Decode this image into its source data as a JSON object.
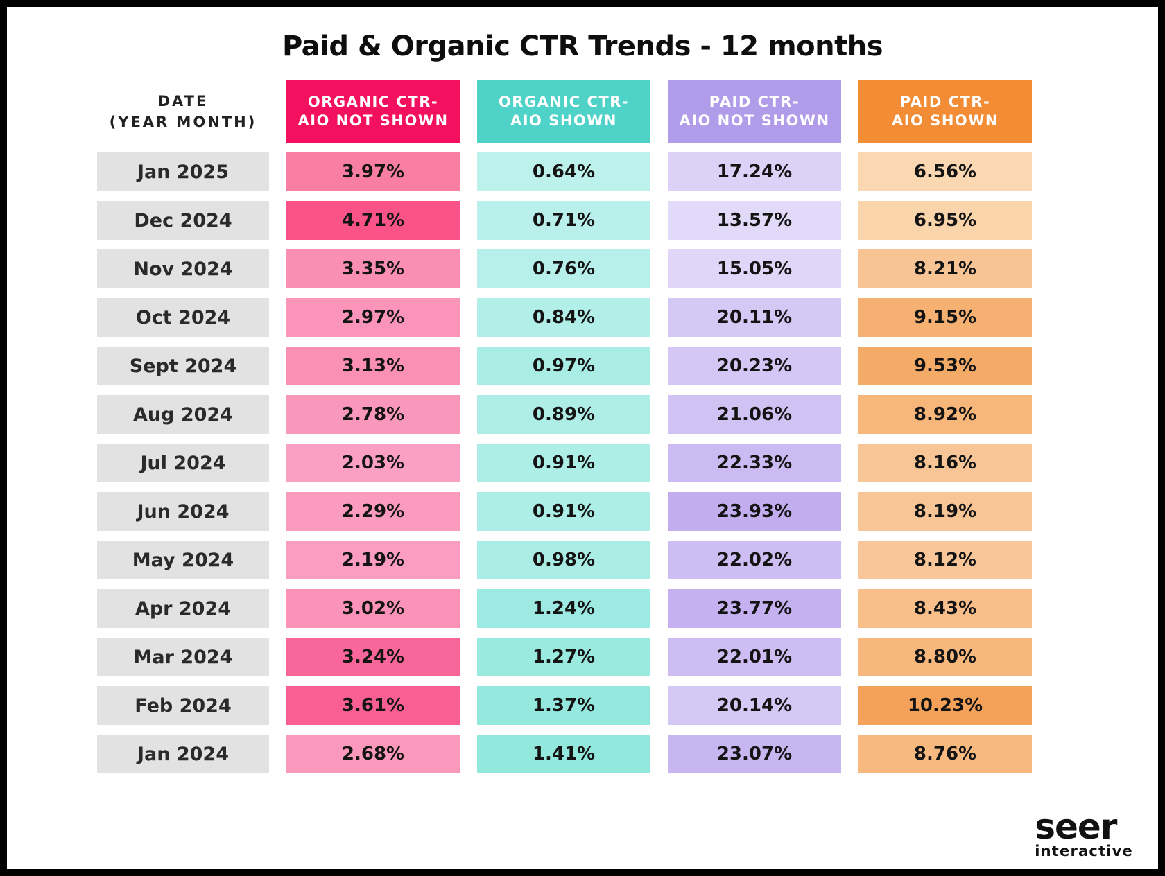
{
  "title": "Paid & Organic CTR Trends - 12 months",
  "table": {
    "date_header": {
      "line1": "DATE",
      "line2": "(YEAR MONTH)"
    },
    "columns": [
      {
        "line1": "ORGANIC CTR-",
        "line2": "AIO NOT SHOWN",
        "header_color": "#F3105E"
      },
      {
        "line1": "ORGANIC CTR-",
        "line2": "AIO SHOWN",
        "header_color": "#4FD2C7"
      },
      {
        "line1": "PAID CTR-",
        "line2": "AIO NOT SHOWN",
        "header_color": "#B19CEA"
      },
      {
        "line1": "PAID CTR-",
        "line2": "AIO SHOWN",
        "header_color": "#F28D36"
      }
    ],
    "date_cell_color": "#E2E2E2",
    "rows": [
      {
        "date": "Jan 2025",
        "values": [
          "3.97%",
          "0.64%",
          "17.24%",
          "6.56%"
        ],
        "colors": [
          "#F97EA4",
          "#BDF1EC",
          "#DCD2F7",
          "#FBD8B2"
        ]
      },
      {
        "date": "Dec 2024",
        "values": [
          "4.71%",
          "0.71%",
          "13.57%",
          "6.95%"
        ],
        "colors": [
          "#F95389",
          "#BAF0EB",
          "#E1DAF9",
          "#FAD4AB"
        ]
      },
      {
        "date": "Nov 2024",
        "values": [
          "3.35%",
          "0.76%",
          "15.05%",
          "8.21%"
        ],
        "colors": [
          "#FA8FB3",
          "#B7F0EA",
          "#DFD6F8",
          "#F8C494"
        ]
      },
      {
        "date": "Oct 2024",
        "values": [
          "2.97%",
          "0.84%",
          "20.11%",
          "9.15%"
        ],
        "colors": [
          "#FA94B8",
          "#B2EFE8",
          "#D4C8F5",
          "#F6B172"
        ]
      },
      {
        "date": "Sept 2024",
        "values": [
          "3.13%",
          "0.97%",
          "20.23%",
          "9.53%"
        ],
        "colors": [
          "#FA91B4",
          "#AAEDE5",
          "#D4C7F5",
          "#F5AB68"
        ]
      },
      {
        "date": "Aug 2024",
        "values": [
          "2.78%",
          "0.89%",
          "21.06%",
          "8.92%"
        ],
        "colors": [
          "#FA98BB",
          "#AFEEE7",
          "#D1C2F4",
          "#F7B67A"
        ]
      },
      {
        "date": "Jul 2024",
        "values": [
          "2.03%",
          "0.91%",
          "22.33%",
          "8.16%"
        ],
        "colors": [
          "#FBA0C2",
          "#ADEEE6",
          "#CCBBF3",
          "#F8C597"
        ]
      },
      {
        "date": "Jun 2024",
        "values": [
          "2.29%",
          "0.91%",
          "23.93%",
          "8.19%"
        ],
        "colors": [
          "#FB9CBE",
          "#ADEEE6",
          "#C2ADEF",
          "#F8C596"
        ]
      },
      {
        "date": "May 2024",
        "values": [
          "2.19%",
          "0.98%",
          "22.02%",
          "8.12%"
        ],
        "colors": [
          "#FB9DC0",
          "#AAEDE5",
          "#CDBDF3",
          "#F8C698"
        ]
      },
      {
        "date": "Apr 2024",
        "values": [
          "3.02%",
          "1.24%",
          "23.77%",
          "8.43%"
        ],
        "colors": [
          "#FA93B7",
          "#9CEAE1",
          "#C5B1F0",
          "#F8BF8B"
        ]
      },
      {
        "date": "Mar 2024",
        "values": [
          "3.24%",
          "1.27%",
          "22.01%",
          "8.80%"
        ],
        "colors": [
          "#F9679A",
          "#9AEAE0",
          "#CDBDF3",
          "#F7B87E"
        ]
      },
      {
        "date": "Feb 2024",
        "values": [
          "3.61%",
          "1.37%",
          "20.14%",
          "10.23%"
        ],
        "colors": [
          "#F95F93",
          "#94E8DE",
          "#D4C8F5",
          "#F4A159"
        ]
      },
      {
        "date": "Jan 2024",
        "values": [
          "2.68%",
          "1.41%",
          "23.07%",
          "8.76%"
        ],
        "colors": [
          "#FA99BC",
          "#92E8DD",
          "#C8B6F1",
          "#F7B980"
        ]
      }
    ]
  },
  "logo": {
    "brand": "seer",
    "sub": "interactive"
  },
  "chart_data": {
    "type": "table",
    "title": "Paid & Organic CTR Trends - 12 months",
    "unit": "%",
    "categories": [
      "Jan 2025",
      "Dec 2024",
      "Nov 2024",
      "Oct 2024",
      "Sept 2024",
      "Aug 2024",
      "Jul 2024",
      "Jun 2024",
      "May 2024",
      "Apr 2024",
      "Mar 2024",
      "Feb 2024",
      "Jan 2024"
    ],
    "series": [
      {
        "name": "Organic CTR - AIO Not Shown",
        "values": [
          3.97,
          4.71,
          3.35,
          2.97,
          3.13,
          2.78,
          2.03,
          2.29,
          2.19,
          3.02,
          3.24,
          3.61,
          2.68
        ]
      },
      {
        "name": "Organic CTR - AIO Shown",
        "values": [
          0.64,
          0.71,
          0.76,
          0.84,
          0.97,
          0.89,
          0.91,
          0.91,
          0.98,
          1.24,
          1.27,
          1.37,
          1.41
        ]
      },
      {
        "name": "Paid CTR - AIO Not Shown",
        "values": [
          17.24,
          13.57,
          15.05,
          20.11,
          20.23,
          21.06,
          22.33,
          23.93,
          22.02,
          23.77,
          22.01,
          20.14,
          23.07
        ]
      },
      {
        "name": "Paid CTR - AIO Shown",
        "values": [
          6.56,
          6.95,
          8.21,
          9.15,
          9.53,
          8.92,
          8.16,
          8.19,
          8.12,
          8.43,
          8.8,
          10.23,
          8.76
        ]
      }
    ],
    "layout_hints": {
      "heatmap_shading": "darker cell = higher value within column",
      "grid": false,
      "legend": "column headers"
    }
  }
}
